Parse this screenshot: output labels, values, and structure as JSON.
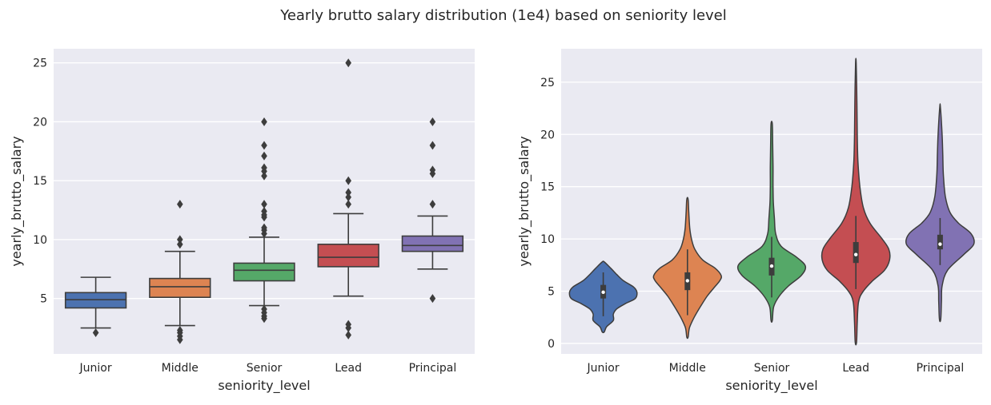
{
  "figure": {
    "title": "Yearly brutto salary distribution (1e4) based on seniority level"
  },
  "colors": {
    "background": "#eaeaf2",
    "grid": "#ffffff",
    "line": "#3d3d3d"
  },
  "chart_data": [
    {
      "type": "box",
      "xlabel": "seniority_level",
      "ylabel": "yearly_brutto_salary",
      "ylim": [
        0.3,
        26.2
      ],
      "yticks": [
        5,
        10,
        15,
        20,
        25
      ],
      "grid": true,
      "categories": [
        "Junior",
        "Middle",
        "Senior",
        "Lead",
        "Principal"
      ],
      "series_colors": [
        "#4c72b0",
        "#dd8452",
        "#55a868",
        "#c44e52",
        "#8172b3"
      ],
      "boxes": [
        {
          "category": "Junior",
          "whisker_low": 2.5,
          "q1": 4.2,
          "median": 4.9,
          "q3": 5.5,
          "whisker_high": 6.8,
          "outliers": [
            2.1
          ]
        },
        {
          "category": "Middle",
          "whisker_low": 2.7,
          "q1": 5.1,
          "median": 6.0,
          "q3": 6.7,
          "whisker_high": 9.0,
          "outliers": [
            1.5,
            1.8,
            2.1,
            2.3,
            9.6,
            10.0,
            13.0
          ]
        },
        {
          "category": "Senior",
          "whisker_low": 4.4,
          "q1": 6.5,
          "median": 7.4,
          "q3": 8.0,
          "whisker_high": 10.2,
          "outliers": [
            3.3,
            3.5,
            3.8,
            4.1,
            10.5,
            10.8,
            11.0,
            11.9,
            12.1,
            12.4,
            13.0,
            15.4,
            15.8,
            16.1,
            17.1,
            18.0,
            20.0
          ]
        },
        {
          "category": "Lead",
          "whisker_low": 5.2,
          "q1": 7.7,
          "median": 8.5,
          "q3": 9.6,
          "whisker_high": 12.2,
          "outliers": [
            1.9,
            2.5,
            2.8,
            13.0,
            13.6,
            14.0,
            15.0,
            25.0
          ]
        },
        {
          "category": "Principal",
          "whisker_low": 7.5,
          "q1": 9.0,
          "median": 9.5,
          "q3": 10.3,
          "whisker_high": 12.0,
          "outliers": [
            5.0,
            13.0,
            15.6,
            15.9,
            18.0,
            20.0
          ]
        }
      ]
    },
    {
      "type": "violin",
      "xlabel": "seniority_level",
      "ylabel": "yearly_brutto_salary",
      "ylim": [
        -1.0,
        28.2
      ],
      "yticks": [
        0,
        5,
        10,
        15,
        20,
        25
      ],
      "grid": true,
      "categories": [
        "Junior",
        "Middle",
        "Senior",
        "Lead",
        "Principal"
      ],
      "series_colors": [
        "#4c72b0",
        "#dd8452",
        "#55a868",
        "#c44e52",
        "#8172b3"
      ],
      "violins": [
        {
          "category": "Junior",
          "y_min": 1.1,
          "y_max": 7.8,
          "q1": 4.3,
          "median": 4.9,
          "q3": 5.6,
          "whisker_low": 2.6,
          "whisker_high": 6.8,
          "profile": [
            [
              1.1,
              0.03
            ],
            [
              1.6,
              0.1
            ],
            [
              2.2,
              0.3
            ],
            [
              2.8,
              0.3
            ],
            [
              3.3,
              0.4
            ],
            [
              3.8,
              0.65
            ],
            [
              4.3,
              0.95
            ],
            [
              4.9,
              1.0
            ],
            [
              5.4,
              0.9
            ],
            [
              6.0,
              0.6
            ],
            [
              6.6,
              0.4
            ],
            [
              7.2,
              0.22
            ],
            [
              7.8,
              0.03
            ]
          ]
        },
        {
          "category": "Middle",
          "y_min": 0.6,
          "y_max": 13.8,
          "q1": 5.1,
          "median": 6.0,
          "q3": 6.8,
          "whisker_low": 2.7,
          "whisker_high": 9.0,
          "profile": [
            [
              0.6,
              0.02
            ],
            [
              1.5,
              0.06
            ],
            [
              2.5,
              0.2
            ],
            [
              3.5,
              0.38
            ],
            [
              4.5,
              0.58
            ],
            [
              5.3,
              0.78
            ],
            [
              6.0,
              0.96
            ],
            [
              6.5,
              1.0
            ],
            [
              7.2,
              0.82
            ],
            [
              8.0,
              0.45
            ],
            [
              9.0,
              0.22
            ],
            [
              10.0,
              0.12
            ],
            [
              11.0,
              0.07
            ],
            [
              12.5,
              0.04
            ],
            [
              13.8,
              0.02
            ]
          ]
        },
        {
          "category": "Senior",
          "y_min": 2.2,
          "y_max": 21.0,
          "q1": 6.5,
          "median": 7.4,
          "q3": 8.2,
          "whisker_low": 4.4,
          "whisker_high": 10.2,
          "profile": [
            [
              2.2,
              0.02
            ],
            [
              3.5,
              0.06
            ],
            [
              4.5,
              0.22
            ],
            [
              5.5,
              0.5
            ],
            [
              6.5,
              0.88
            ],
            [
              7.4,
              1.0
            ],
            [
              8.3,
              0.72
            ],
            [
              9.3,
              0.28
            ],
            [
              10.5,
              0.12
            ],
            [
              12.0,
              0.08
            ],
            [
              13.5,
              0.05
            ],
            [
              15.0,
              0.04
            ],
            [
              17.0,
              0.04
            ],
            [
              19.0,
              0.03
            ],
            [
              21.0,
              0.02
            ]
          ]
        },
        {
          "category": "Lead",
          "y_min": 0.1,
          "y_max": 26.8,
          "q1": 7.7,
          "median": 8.5,
          "q3": 9.7,
          "whisker_low": 5.2,
          "whisker_high": 12.2,
          "profile": [
            [
              0.1,
              0.02
            ],
            [
              2.0,
              0.04
            ],
            [
              4.0,
              0.08
            ],
            [
              5.0,
              0.22
            ],
            [
              6.0,
              0.5
            ],
            [
              7.0,
              0.85
            ],
            [
              8.0,
              1.0
            ],
            [
              9.0,
              0.98
            ],
            [
              10.0,
              0.78
            ],
            [
              11.5,
              0.42
            ],
            [
              13.0,
              0.22
            ],
            [
              15.0,
              0.12
            ],
            [
              17.5,
              0.06
            ],
            [
              20.0,
              0.04
            ],
            [
              23.0,
              0.03
            ],
            [
              26.8,
              0.01
            ]
          ]
        },
        {
          "category": "Principal",
          "y_min": 2.3,
          "y_max": 22.6,
          "q1": 9.0,
          "median": 9.5,
          "q3": 10.4,
          "whisker_low": 7.5,
          "whisker_high": 12.0,
          "profile": [
            [
              2.3,
              0.02
            ],
            [
              4.0,
              0.04
            ],
            [
              5.5,
              0.06
            ],
            [
              7.0,
              0.22
            ],
            [
              8.5,
              0.7
            ],
            [
              9.5,
              1.0
            ],
            [
              10.5,
              0.92
            ],
            [
              11.5,
              0.55
            ],
            [
              12.5,
              0.3
            ],
            [
              14.0,
              0.16
            ],
            [
              16.0,
              0.1
            ],
            [
              18.0,
              0.08
            ],
            [
              20.0,
              0.06
            ],
            [
              22.6,
              0.01
            ]
          ]
        }
      ]
    }
  ]
}
